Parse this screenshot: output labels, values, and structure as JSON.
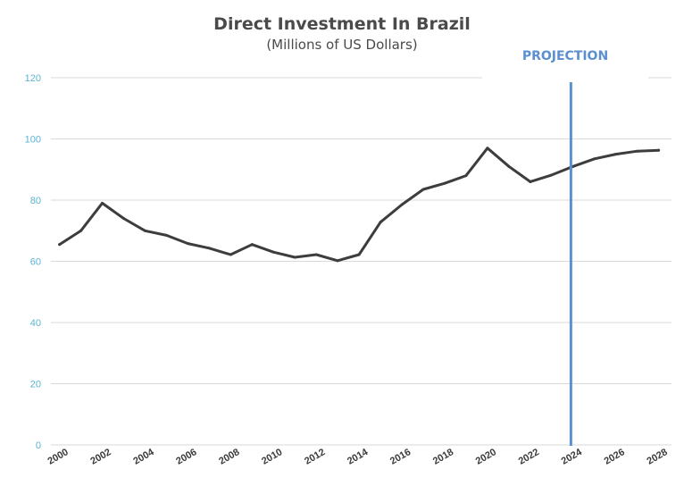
{
  "chart_data": {
    "type": "line",
    "title": "Direct Investment In Brazil",
    "subtitle": "(Millions of US Dollars)",
    "xlabel": "",
    "ylabel": "",
    "ylim": [
      0,
      120
    ],
    "yticks": [
      "0",
      "20",
      "40",
      "60",
      "80",
      "100",
      "120"
    ],
    "xticks": [
      "2000",
      "2002",
      "2004",
      "2006",
      "2008",
      "2010",
      "2012",
      "2014",
      "2016",
      "2018",
      "2020",
      "2022",
      "2024",
      "2026",
      "2028"
    ],
    "grid": true,
    "series": [
      {
        "x": [
          2000,
          2001,
          2002,
          2003,
          2004,
          2005,
          2006,
          2007,
          2008,
          2009,
          2010,
          2011,
          2012,
          2013,
          2014,
          2015,
          2016,
          2017,
          2018,
          2019,
          2020,
          2021,
          2022,
          2023,
          2024,
          2025,
          2026,
          2027,
          2028
        ],
        "values": [
          65.5,
          70,
          79,
          74,
          70,
          68.5,
          65.8,
          64.3,
          62.2,
          65.5,
          63,
          61.3,
          62.2,
          60.2,
          62.2,
          72.8,
          78.5,
          83.5,
          85.5,
          88,
          97,
          91,
          86,
          88.2,
          91,
          93.5,
          95,
          96,
          96.3
        ],
        "color": "#3d3d3d"
      }
    ],
    "annotations": [
      {
        "text": "PROJECTION",
        "x": 2023.9,
        "color": "#5b8fcf"
      }
    ]
  }
}
